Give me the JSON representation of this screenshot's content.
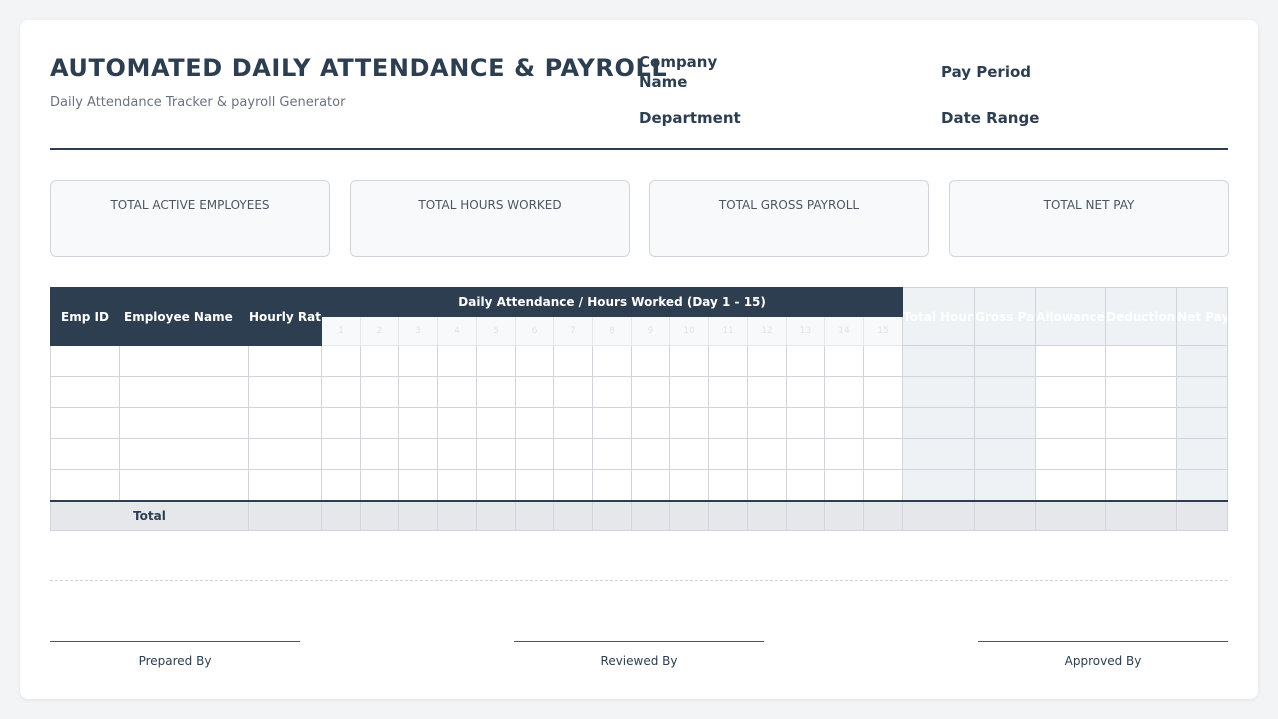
{
  "header": {
    "title": "AUTOMATED DAILY ATTENDANCE & PAYROLL",
    "subtitle": "Daily Attendance Tracker & payroll Generator",
    "company_name_label": "Company Name",
    "department_label": "Department",
    "pay_period_label": "Pay Period",
    "date_range_label": "Date Range"
  },
  "stats": [
    {
      "label": "TOTAL ACTIVE EMPLOYEES"
    },
    {
      "label": "TOTAL HOURS WORKED"
    },
    {
      "label": "TOTAL GROSS PAYROLL"
    },
    {
      "label": "TOTAL NET PAY"
    }
  ],
  "table": {
    "emp_id": "Emp ID",
    "employee_name": "Employee Name",
    "hourly_rate": "Hourly Rate",
    "daily_group": "Daily Attendance / Hours Worked (Day 1 - 15)",
    "days": [
      "1",
      "2",
      "3",
      "4",
      "5",
      "6",
      "7",
      "8",
      "9",
      "10",
      "11",
      "12",
      "13",
      "14",
      "15"
    ],
    "summary_headers": [
      "Total Hours",
      "Gross Pay",
      "Allowances",
      "Deductions",
      "Net Pay"
    ],
    "row_count": 5,
    "total_label": "Total"
  },
  "signatures": {
    "prepared": "Prepared By",
    "reviewed": "Reviewed By",
    "approved": "Approved By"
  },
  "colors": {
    "primary": "#2c3e50",
    "summary_shade": "#eef2f5",
    "total_row": "#e5e7eb"
  }
}
